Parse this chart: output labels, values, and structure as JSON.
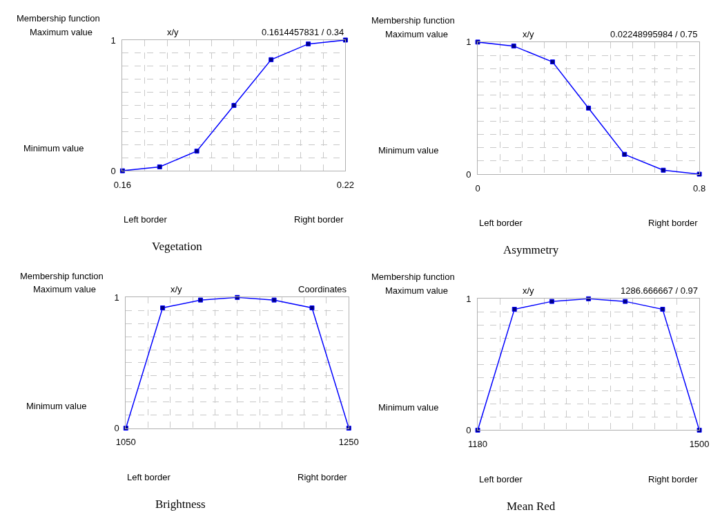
{
  "chart_data": [
    {
      "type": "line",
      "title": "Vegetation",
      "annotations": [
        "Membership function",
        "Maximum value",
        "Minimum value",
        "x/y",
        "0.1614457831 / 0.34",
        "Left border",
        "Right border"
      ],
      "x": [
        0.16,
        0.17,
        0.18,
        0.19,
        0.2,
        0.21,
        0.22
      ],
      "series": [
        {
          "color": "#0000ff",
          "values": [
            0,
            0.03,
            0.15,
            0.5,
            0.85,
            0.97,
            1
          ]
        }
      ],
      "xlim": [
        0.16,
        0.22
      ],
      "xticks": [
        0.16,
        {
          "value": 0.166,
          "label": null
        },
        {
          "value": 0.172,
          "label": null
        },
        {
          "value": 0.178,
          "label": null
        },
        {
          "value": 0.184,
          "label": null
        },
        {
          "value": 0.19,
          "label": null
        },
        {
          "value": 0.196,
          "label": null
        },
        {
          "value": 0.202,
          "label": null
        },
        {
          "value": 0.208,
          "label": null
        },
        {
          "value": 0.214,
          "label": null
        },
        0.22
      ],
      "ylim": [
        0,
        1
      ],
      "yticks": [
        0,
        {
          "value": 0.1,
          "label": null
        },
        {
          "value": 0.2,
          "label": null
        },
        {
          "value": 0.3,
          "label": null
        },
        {
          "value": 0.4,
          "label": null
        },
        {
          "value": 0.5,
          "label": null
        },
        {
          "value": 0.6,
          "label": null
        },
        {
          "value": 0.7,
          "label": null
        },
        {
          "value": 0.8,
          "label": null
        },
        {
          "value": 0.9,
          "label": null
        },
        1
      ],
      "grid": true,
      "marker": "square",
      "line_style": "solid"
    },
    {
      "type": "line",
      "title": "Asymmetry",
      "annotations": [
        "Membership function",
        "Maximum value",
        "Minimum value",
        "x/y",
        "0.02248995984 / 0.75",
        "Left border",
        "Right border"
      ],
      "x": [
        0,
        0.13,
        0.27,
        0.4,
        0.53,
        0.67,
        0.8
      ],
      "series": [
        {
          "color": "#0000ff",
          "values": [
            1,
            0.97,
            0.85,
            0.5,
            0.15,
            0.03,
            0
          ]
        }
      ],
      "xlim": [
        0,
        0.8
      ],
      "xticks": [
        0,
        {
          "value": 0.08,
          "label": null
        },
        {
          "value": 0.16,
          "label": null
        },
        {
          "value": 0.24,
          "label": null
        },
        {
          "value": 0.32,
          "label": null
        },
        {
          "value": 0.4,
          "label": null
        },
        {
          "value": 0.48,
          "label": null
        },
        {
          "value": 0.56,
          "label": null
        },
        {
          "value": 0.64,
          "label": null
        },
        {
          "value": 0.72,
          "label": null
        },
        0.8
      ],
      "ylim": [
        0,
        1
      ],
      "yticks": [
        0,
        {
          "value": 0.1,
          "label": null
        },
        {
          "value": 0.2,
          "label": null
        },
        {
          "value": 0.3,
          "label": null
        },
        {
          "value": 0.4,
          "label": null
        },
        {
          "value": 0.5,
          "label": null
        },
        {
          "value": 0.6,
          "label": null
        },
        {
          "value": 0.7,
          "label": null
        },
        {
          "value": 0.8,
          "label": null
        },
        {
          "value": 0.9,
          "label": null
        },
        1
      ],
      "grid": true,
      "marker": "square",
      "line_style": "solid"
    },
    {
      "type": "line",
      "title": "Brightness",
      "annotations": [
        "Membership function",
        "Maximum value",
        "Minimum value",
        "x/y",
        "Coordinates",
        "Left border",
        "Right border"
      ],
      "x": [
        1050,
        1083,
        1117,
        1150,
        1183,
        1217,
        1250
      ],
      "series": [
        {
          "color": "#0000ff",
          "values": [
            0,
            0.92,
            0.98,
            1,
            0.98,
            0.92,
            0
          ]
        }
      ],
      "xlim": [
        1050,
        1250
      ],
      "xticks": [
        1050,
        {
          "value": 1070,
          "label": null
        },
        {
          "value": 1090,
          "label": null
        },
        {
          "value": 1110,
          "label": null
        },
        {
          "value": 1130,
          "label": null
        },
        {
          "value": 1150,
          "label": null
        },
        {
          "value": 1170,
          "label": null
        },
        {
          "value": 1190,
          "label": null
        },
        {
          "value": 1210,
          "label": null
        },
        {
          "value": 1230,
          "label": null
        },
        1250
      ],
      "ylim": [
        0,
        1
      ],
      "yticks": [
        0,
        {
          "value": 0.1,
          "label": null
        },
        {
          "value": 0.2,
          "label": null
        },
        {
          "value": 0.3,
          "label": null
        },
        {
          "value": 0.4,
          "label": null
        },
        {
          "value": 0.5,
          "label": null
        },
        {
          "value": 0.6,
          "label": null
        },
        {
          "value": 0.7,
          "label": null
        },
        {
          "value": 0.8,
          "label": null
        },
        {
          "value": 0.9,
          "label": null
        },
        1
      ],
      "grid": true,
      "marker": "square",
      "line_style": "solid"
    },
    {
      "type": "line",
      "title": "Mean Red",
      "annotations": [
        "Membership function",
        "Maximum value",
        "Minimum value",
        "x/y",
        "1286.666667 / 0.97",
        "Left border",
        "Right border"
      ],
      "x": [
        1180,
        1233,
        1287,
        1340,
        1393,
        1447,
        1500
      ],
      "series": [
        {
          "color": "#0000ff",
          "values": [
            0,
            0.92,
            0.98,
            1,
            0.98,
            0.92,
            0
          ]
        }
      ],
      "xlim": [
        1180,
        1500
      ],
      "xticks": [
        1180,
        {
          "value": 1212,
          "label": null
        },
        {
          "value": 1244,
          "label": null
        },
        {
          "value": 1276,
          "label": null
        },
        {
          "value": 1308,
          "label": null
        },
        {
          "value": 1340,
          "label": null
        },
        {
          "value": 1372,
          "label": null
        },
        {
          "value": 1404,
          "label": null
        },
        {
          "value": 1436,
          "label": null
        },
        {
          "value": 1468,
          "label": null
        },
        1500
      ],
      "ylim": [
        0,
        1
      ],
      "yticks": [
        0,
        {
          "value": 0.1,
          "label": null
        },
        {
          "value": 0.2,
          "label": null
        },
        {
          "value": 0.3,
          "label": null
        },
        {
          "value": 0.4,
          "label": null
        },
        {
          "value": 0.5,
          "label": null
        },
        {
          "value": 0.6,
          "label": null
        },
        {
          "value": 0.7,
          "label": null
        },
        {
          "value": 0.8,
          "label": null
        },
        {
          "value": 0.9,
          "label": null
        },
        1
      ],
      "grid": true,
      "marker": "square",
      "line_style": "solid"
    }
  ]
}
